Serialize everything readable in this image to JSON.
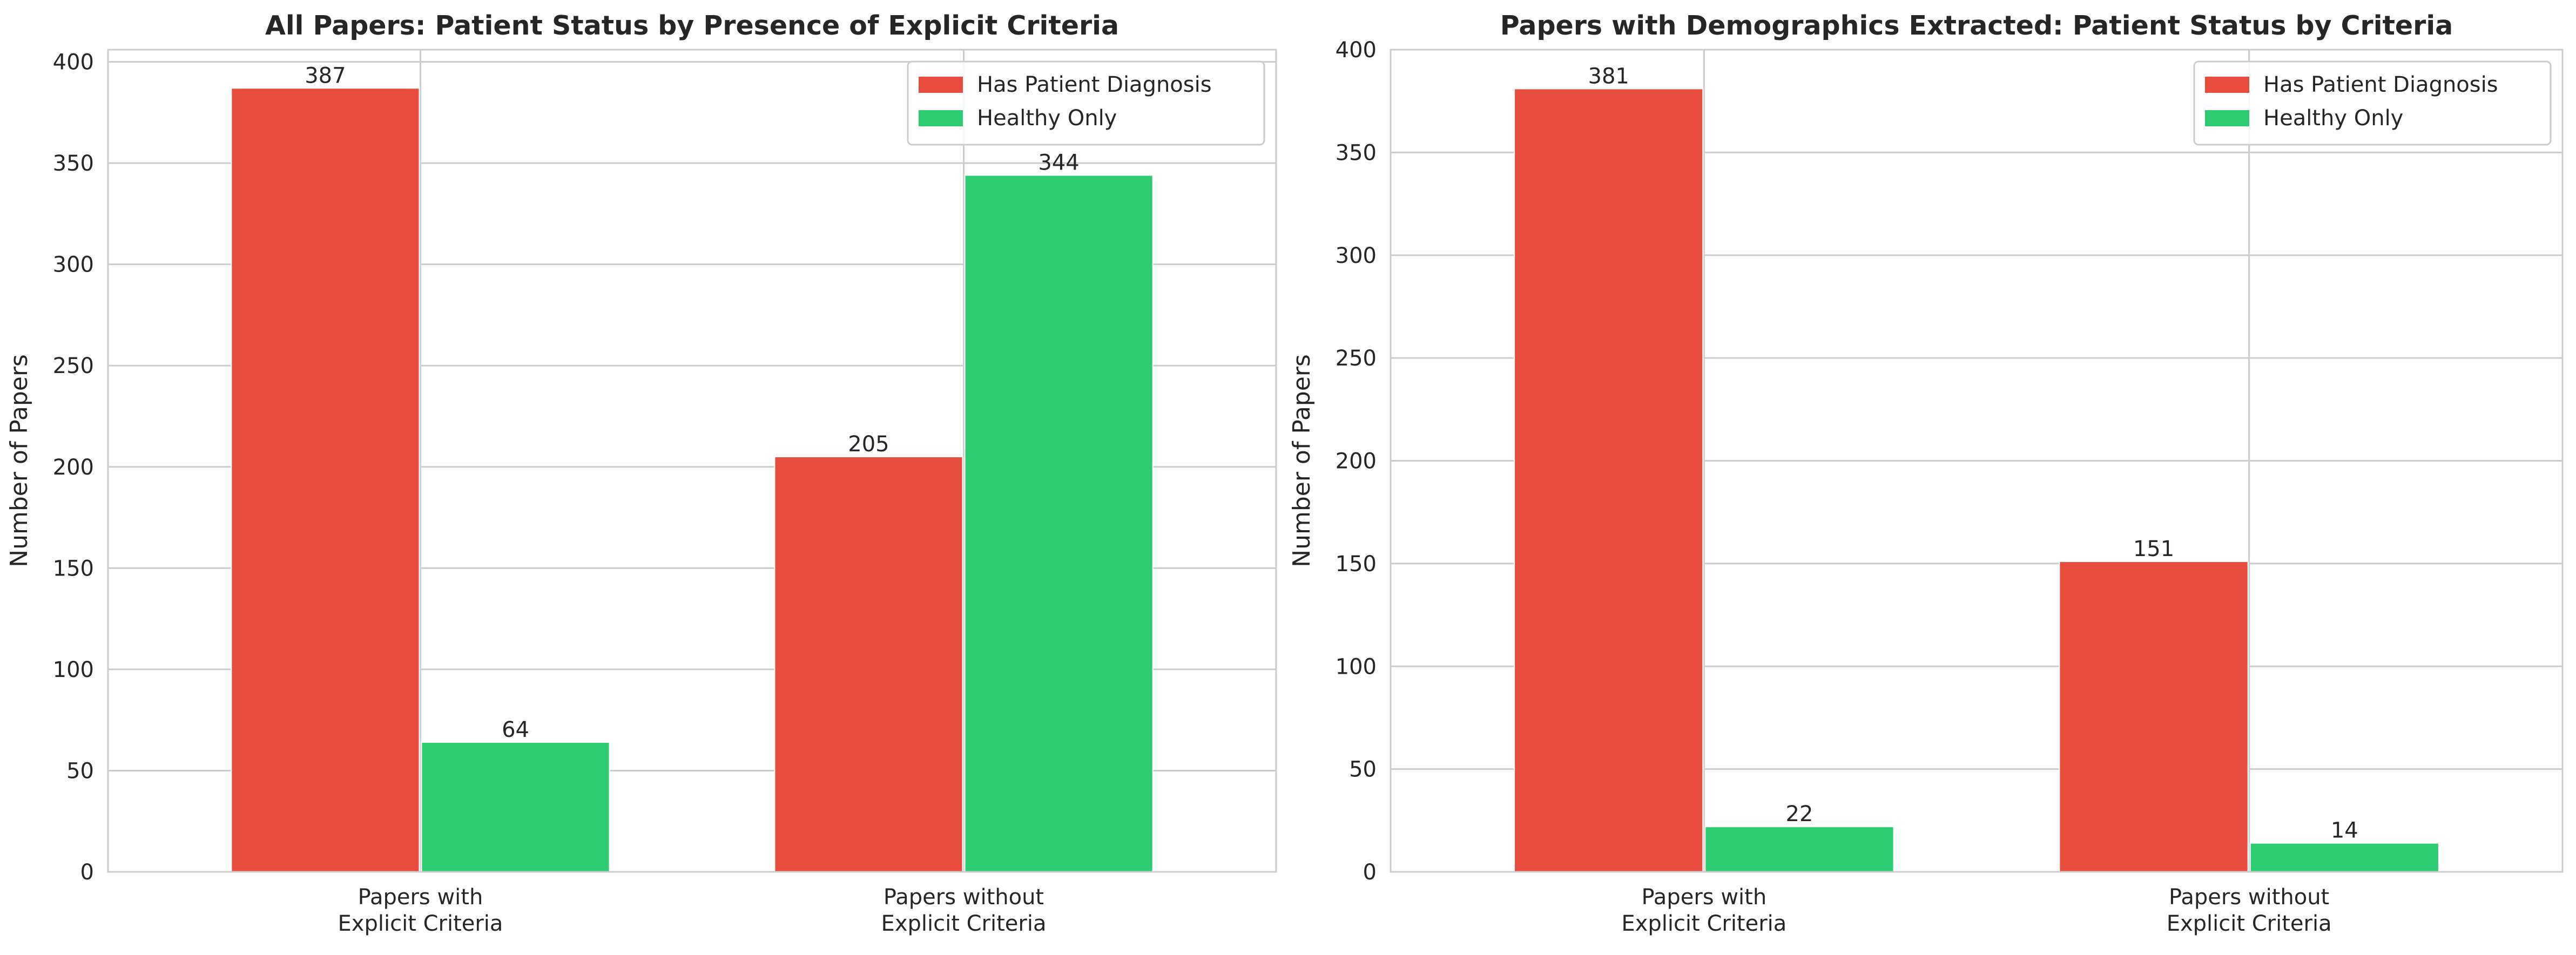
{
  "chart_data": [
    {
      "type": "bar",
      "title": "All Papers: Patient Status by Presence of Explicit Criteria",
      "xlabel": "",
      "ylabel": "Number of Papers",
      "categories": [
        "Papers with\nExplicit Criteria",
        "Papers without\nExplicit Criteria"
      ],
      "series": [
        {
          "name": "Has Patient Diagnosis",
          "color": "#e74c3c",
          "values": [
            387,
            205
          ]
        },
        {
          "name": "Healthy Only",
          "color": "#2ecc71",
          "values": [
            64,
            344
          ]
        }
      ],
      "ylim": [
        0,
        406
      ],
      "yticks": [
        0,
        50,
        100,
        150,
        200,
        250,
        300,
        350,
        400
      ],
      "grid": true,
      "legend": "top-right"
    },
    {
      "type": "bar",
      "title": "Papers with Demographics Extracted: Patient Status by Criteria",
      "xlabel": "",
      "ylabel": "Number of Papers",
      "categories": [
        "Papers with\nExplicit Criteria",
        "Papers without\nExplicit Criteria"
      ],
      "series": [
        {
          "name": "Has Patient Diagnosis",
          "color": "#e74c3c",
          "values": [
            381,
            151
          ]
        },
        {
          "name": "Healthy Only",
          "color": "#2ecc71",
          "values": [
            22,
            14
          ]
        }
      ],
      "ylim": [
        0,
        400
      ],
      "yticks": [
        0,
        50,
        100,
        150,
        200,
        250,
        300,
        350,
        400
      ],
      "grid": true,
      "legend": "top-right"
    }
  ]
}
